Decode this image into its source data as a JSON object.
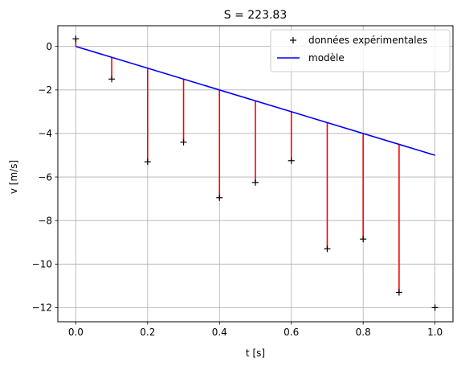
{
  "chart_data": {
    "type": "line",
    "title": "S = 223.83",
    "xlabel": "t [s]",
    "ylabel": "v [m/s]",
    "xlim": [
      -0.05,
      1.05
    ],
    "ylim": [
      -12.65,
      0.95
    ],
    "x_ticks": [
      0.0,
      0.2,
      0.4,
      0.6,
      0.8,
      1.0
    ],
    "x_tick_labels": [
      "0.0",
      "0.2",
      "0.4",
      "0.6",
      "0.8",
      "1.0"
    ],
    "y_ticks": [
      0,
      -2,
      -4,
      -6,
      -8,
      -10,
      -12
    ],
    "y_tick_labels": [
      "0",
      "−2",
      "−4",
      "−6",
      "−8",
      "−10",
      "−12"
    ],
    "grid": true,
    "legend_position": "top-right",
    "series": [
      {
        "name": "données expérimentales",
        "kind": "scatter",
        "marker": "+",
        "color": "#000000",
        "x": [
          0.0,
          0.1,
          0.2,
          0.3,
          0.4,
          0.5,
          0.6,
          0.7,
          0.8,
          0.9,
          1.0
        ],
        "y": [
          0.35,
          -1.5,
          -5.3,
          -4.4,
          -6.95,
          -6.25,
          -5.25,
          -9.3,
          -8.85,
          -11.3,
          -12.0
        ]
      },
      {
        "name": "modèle",
        "kind": "line",
        "color": "#0000ff",
        "x": [
          0.0,
          1.0
        ],
        "y": [
          0.0,
          -5.0
        ]
      }
    ],
    "residuals": {
      "color": "#ff0000",
      "x": [
        0.0,
        0.1,
        0.2,
        0.3,
        0.4,
        0.5,
        0.6,
        0.7,
        0.8,
        0.9
      ],
      "model_y": [
        0.0,
        -0.5,
        -1.0,
        -1.5,
        -2.0,
        -2.5,
        -3.0,
        -3.5,
        -4.0,
        -4.5
      ],
      "data_y": [
        0.35,
        -1.5,
        -5.3,
        -4.4,
        -6.95,
        -6.25,
        -5.25,
        -9.3,
        -8.85,
        -11.3
      ]
    }
  }
}
